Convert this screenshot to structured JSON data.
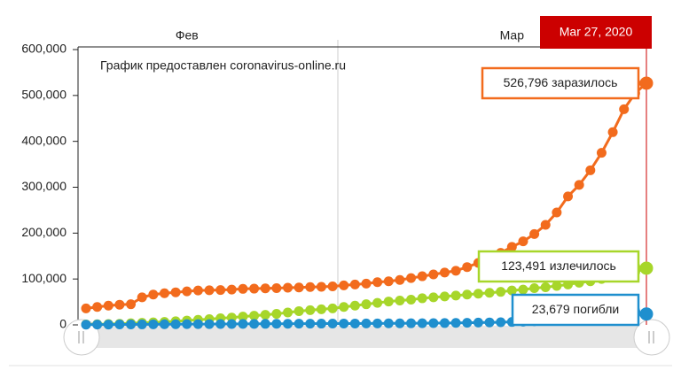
{
  "chart_data": {
    "type": "line",
    "credit": "График предоставлен coronavirus-online.ru",
    "categories": [
      null,
      null,
      null,
      null,
      null,
      null,
      null,
      null,
      null,
      "Фев",
      null,
      null,
      null,
      null,
      null,
      null,
      null,
      null,
      null,
      null,
      null,
      null,
      null,
      null,
      null,
      null,
      null,
      null,
      null,
      null,
      null,
      null,
      null,
      null,
      null,
      null,
      null,
      null,
      "Мар",
      null,
      null,
      null,
      null,
      null,
      null,
      null,
      null,
      null,
      null,
      null,
      "Mar 27, 2020"
    ],
    "series": [
      {
        "name": "заразилось",
        "color": "#f26b1d",
        "values": [
          36000,
          39000,
          42000,
          44000,
          45000,
          60000,
          66000,
          69000,
          71000,
          73000,
          75000,
          75500,
          76000,
          77000,
          78500,
          79000,
          79500,
          80000,
          81000,
          81500,
          82500,
          83000,
          84000,
          86000,
          88000,
          90000,
          93000,
          95000,
          98000,
          102000,
          106000,
          110000,
          114000,
          118000,
          126000,
          135000,
          146000,
          157000,
          170000,
          182000,
          198000,
          218000,
          245000,
          280000,
          305000,
          337000,
          375000,
          420000,
          470000,
          505000,
          526796
        ],
        "value_labels": [
          null,
          null,
          null,
          null,
          null,
          null,
          null,
          null,
          null,
          null,
          null,
          null,
          null,
          null,
          null,
          null,
          null,
          null,
          null,
          null,
          null,
          null,
          null,
          null,
          null,
          null,
          null,
          null,
          null,
          null,
          null,
          null,
          null,
          null,
          null,
          null,
          null,
          null,
          null,
          null,
          null,
          null,
          null,
          null,
          null,
          null,
          null,
          null,
          null,
          null,
          "526,796"
        ]
      },
      {
        "name": "излечилось",
        "color": "#a7d62a",
        "values": [
          1000,
          1500,
          2000,
          2500,
          3500,
          4500,
          5500,
          6500,
          8000,
          9500,
          11000,
          12500,
          14500,
          16000,
          18000,
          20000,
          22000,
          24000,
          27000,
          30000,
          32000,
          34000,
          36000,
          39000,
          42000,
          45000,
          48000,
          51000,
          53000,
          55000,
          58000,
          60000,
          62000,
          64000,
          66000,
          68000,
          70000,
          72000,
          75000,
          77000,
          80000,
          82000,
          85000,
          88000,
          92000,
          95000,
          100000,
          104000,
          109000,
          115000,
          123491
        ],
        "value_labels": [
          null,
          null,
          null,
          null,
          null,
          null,
          null,
          null,
          null,
          null,
          null,
          null,
          null,
          null,
          null,
          null,
          null,
          null,
          null,
          null,
          null,
          null,
          null,
          null,
          null,
          null,
          null,
          null,
          null,
          null,
          null,
          null,
          null,
          null,
          null,
          null,
          null,
          null,
          null,
          null,
          null,
          null,
          null,
          null,
          null,
          null,
          null,
          null,
          null,
          null,
          "123,491"
        ]
      },
      {
        "name": "погибли",
        "color": "#1f8fce",
        "values": [
          600,
          700,
          800,
          900,
          1000,
          1100,
          1300,
          1400,
          1500,
          1600,
          1700,
          1800,
          1900,
          2000,
          2100,
          2200,
          2300,
          2400,
          2500,
          2600,
          2700,
          2800,
          2900,
          3000,
          3000,
          3100,
          3200,
          3300,
          3400,
          3500,
          3600,
          3800,
          4000,
          4300,
          4600,
          5000,
          5400,
          5800,
          6400,
          7100,
          7900,
          8700,
          9800,
          11200,
          12900,
          14600,
          16400,
          18400,
          20400,
          22000,
          23679
        ],
        "value_labels": [
          null,
          null,
          null,
          null,
          null,
          null,
          null,
          null,
          null,
          null,
          null,
          null,
          null,
          null,
          null,
          null,
          null,
          null,
          null,
          null,
          null,
          null,
          null,
          null,
          null,
          null,
          null,
          null,
          null,
          null,
          null,
          null,
          null,
          null,
          null,
          null,
          null,
          null,
          null,
          null,
          null,
          null,
          null,
          null,
          null,
          null,
          null,
          null,
          null,
          null,
          "23,679"
        ]
      }
    ],
    "ylim": [
      0,
      600000
    ],
    "yticks": [
      0,
      {
        "value": 100000,
        "label": "100,000"
      },
      {
        "value": 200000,
        "label": "200,000"
      },
      {
        "value": 300000,
        "label": "300,000"
      },
      {
        "value": 400000,
        "label": "400,000"
      },
      {
        "value": 500000,
        "label": "500,000"
      },
      {
        "value": 600000,
        "label": "600,000"
      }
    ]
  }
}
